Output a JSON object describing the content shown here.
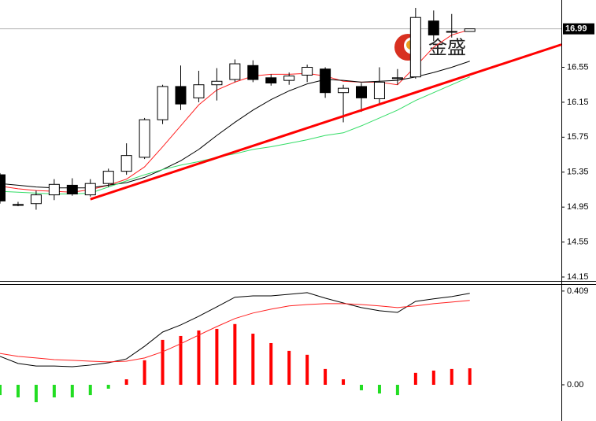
{
  "chart_data": [
    {
      "type": "candlestick",
      "categories": [
        null,
        null,
        null,
        null,
        null,
        null,
        null,
        null,
        null,
        null,
        null,
        null,
        null,
        null,
        null,
        null,
        null,
        null,
        null,
        null,
        null,
        null,
        null,
        null,
        null,
        null,
        null
      ],
      "open": [
        15.32,
        14.98,
        14.99,
        15.09,
        15.2,
        15.09,
        15.22,
        15.36,
        15.52,
        15.95,
        16.33,
        16.2,
        16.35,
        16.41,
        16.57,
        16.43,
        16.4,
        16.46,
        16.53,
        16.26,
        16.33,
        16.19,
        16.42,
        16.44,
        17.08,
        16.96,
        16.96
      ],
      "high": [
        15.34,
        15.01,
        15.14,
        15.27,
        15.28,
        15.27,
        15.39,
        15.68,
        15.97,
        16.35,
        16.57,
        16.51,
        16.54,
        16.64,
        16.63,
        16.47,
        16.49,
        16.58,
        16.55,
        16.35,
        16.37,
        16.55,
        16.53,
        17.23,
        17.2,
        17.16,
        16.99
      ],
      "low": [
        14.99,
        14.96,
        14.92,
        15.03,
        15.08,
        15.07,
        15.18,
        15.32,
        15.5,
        15.9,
        16.06,
        16.15,
        16.17,
        16.38,
        16.38,
        16.34,
        16.35,
        16.38,
        16.2,
        15.92,
        16.04,
        16.12,
        16.35,
        16.42,
        16.85,
        16.89,
        16.96
      ],
      "close": [
        15.02,
        14.97,
        15.09,
        15.21,
        15.1,
        15.22,
        15.36,
        15.54,
        15.95,
        16.33,
        16.13,
        16.35,
        16.39,
        16.59,
        16.41,
        16.37,
        16.45,
        16.55,
        16.26,
        16.31,
        16.2,
        16.38,
        16.43,
        17.12,
        16.92,
        16.96,
        16.99
      ],
      "up_color": "#ffffff",
      "down_color": "#000000",
      "series": [
        {
          "color": "#ff2020",
          "values": [
            15.19,
            15.16,
            15.14,
            15.13,
            15.12,
            15.15,
            15.2,
            15.27,
            15.41,
            15.64,
            15.88,
            16.12,
            16.29,
            16.38,
            16.45,
            16.47,
            16.47,
            16.48,
            16.45,
            16.39,
            16.38,
            16.38,
            16.35,
            16.56,
            16.78,
            16.92,
            16.98
          ]
        },
        {
          "color": "#000000",
          "values": [
            15.22,
            15.2,
            15.18,
            15.17,
            15.17,
            15.17,
            15.2,
            15.23,
            15.29,
            15.38,
            15.48,
            15.61,
            15.77,
            15.92,
            16.06,
            16.18,
            16.28,
            16.36,
            16.41,
            16.4,
            16.38,
            16.39,
            16.4,
            16.44,
            16.49,
            16.55,
            16.62
          ]
        },
        {
          "color": "#33dd66",
          "values": [
            15.13,
            15.12,
            15.11,
            15.1,
            15.1,
            15.11,
            15.18,
            15.25,
            15.32,
            15.38,
            15.43,
            15.47,
            15.52,
            15.56,
            15.61,
            15.64,
            15.68,
            15.72,
            15.77,
            15.8,
            15.88,
            15.97,
            16.06,
            16.17,
            16.26,
            16.35,
            16.44
          ]
        }
      ],
      "trendline": {
        "x": [
          5,
          31.07
        ],
        "y": [
          15.04,
          16.81
        ],
        "color": "#ff0000"
      },
      "last_price": 16.99,
      "logo_text": "金盛",
      "ylim": [
        14.105,
        17.32
      ],
      "yticks": [
        14.15,
        14.55,
        14.95,
        15.35,
        15.75,
        16.15,
        16.55
      ]
    },
    {
      "type": "macd",
      "categories": [
        null,
        null,
        null,
        null,
        null,
        null,
        null,
        null,
        null,
        null,
        null,
        null,
        null,
        null,
        null,
        null,
        null,
        null,
        null,
        null,
        null,
        null,
        null,
        null,
        null,
        null,
        null
      ],
      "values": [
        -0.045,
        -0.055,
        -0.076,
        -0.055,
        -0.055,
        -0.045,
        -0.017,
        0.024,
        0.107,
        0.196,
        0.213,
        0.237,
        0.244,
        0.265,
        0.223,
        0.182,
        0.148,
        0.131,
        0.069,
        0.024,
        -0.024,
        -0.038,
        -0.045,
        0.052,
        0.062,
        0.069,
        0.072
      ],
      "positive_color": "#ff0000",
      "negative_color": "#22dd22",
      "series": [
        {
          "color": "#000000",
          "values": [
            0.124,
            0.093,
            0.082,
            0.082,
            0.079,
            0.086,
            0.096,
            0.113,
            0.168,
            0.23,
            0.261,
            0.299,
            0.34,
            0.382,
            0.388,
            0.388,
            0.395,
            0.402,
            0.378,
            0.357,
            0.337,
            0.323,
            0.316,
            0.364,
            0.375,
            0.385,
            0.399
          ]
        },
        {
          "color": "#ff2020",
          "values": [
            0.137,
            0.124,
            0.117,
            0.11,
            0.107,
            0.103,
            0.1,
            0.103,
            0.117,
            0.144,
            0.179,
            0.217,
            0.254,
            0.289,
            0.313,
            0.33,
            0.344,
            0.35,
            0.354,
            0.354,
            0.35,
            0.344,
            0.337,
            0.344,
            0.354,
            0.361,
            0.368
          ]
        }
      ],
      "ylim": [
        -0.158,
        0.436
      ],
      "yticks": [
        0.409,
        {
          "value": 0,
          "label": "0.00"
        }
      ]
    }
  ]
}
